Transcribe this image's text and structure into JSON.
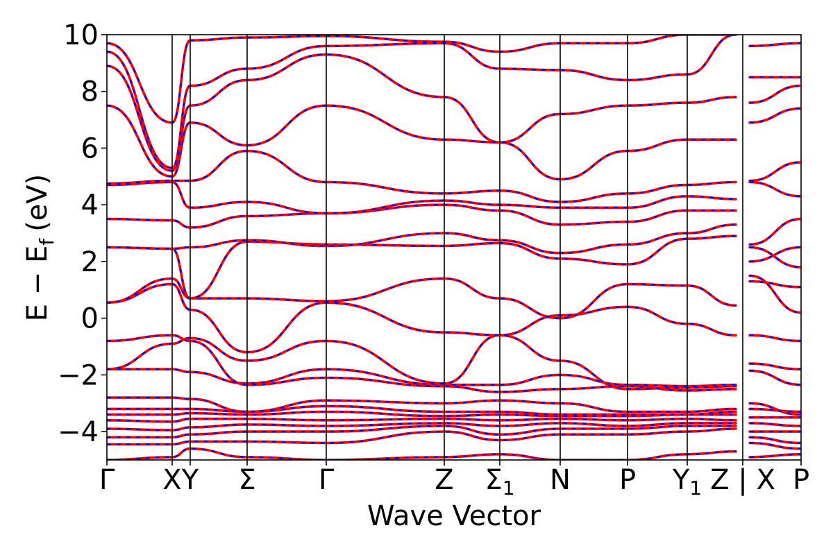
{
  "chart_data": {
    "type": "line",
    "title": "",
    "xlabel": "Wave Vector",
    "ylabel": "E − E",
    "ylabel_subscript": "f",
    "ylabel_unit": "(eV)",
    "ylim": [
      -5,
      10
    ],
    "y_ticks": [
      "10",
      "8",
      "6",
      "4",
      "2",
      "0",
      "−2",
      "−4"
    ],
    "y_tick_values": [
      10,
      8,
      6,
      4,
      2,
      0,
      -2,
      -4
    ],
    "k_path_labels": [
      {
        "label": "Γ",
        "x": 0.0
      },
      {
        "label": "X",
        "x": 0.094
      },
      {
        "label": "Y",
        "x": 0.12
      },
      {
        "label": "Σ",
        "x": 0.202
      },
      {
        "label": "Γ",
        "x": 0.316
      },
      {
        "label": "Z",
        "x": 0.486
      },
      {
        "label": "Σ",
        "sub": "1",
        "x": 0.566
      },
      {
        "label": "N",
        "x": 0.653
      },
      {
        "label": "P",
        "x": 0.75
      },
      {
        "label": "Y",
        "sub": "1",
        "x": 0.836
      },
      {
        "label": "Z | X",
        "x": 0.916
      },
      {
        "label": "P",
        "x": 1.0
      }
    ],
    "series_colors": {
      "primary": "#ff0000",
      "overlay": "#0000ff"
    },
    "line_styles": {
      "primary": "solid",
      "overlay": "dashed"
    },
    "bands": [
      {
        "y": [
          -5.0,
          -4.9,
          -4.6,
          -4.9,
          -5.0,
          -4.9,
          -4.8,
          -5.0,
          -5.0,
          -4.8,
          -4.7,
          -4.9,
          -4.8
        ]
      },
      {
        "y": [
          -4.45,
          -4.45,
          -4.35,
          -4.35,
          -4.4,
          -4.0,
          -4.3,
          -4.1,
          -4.1,
          -4.0,
          -3.9,
          -4.4,
          -4.6
        ]
      },
      {
        "y": [
          -4.2,
          -4.2,
          -4.1,
          -4.0,
          -4.0,
          -3.8,
          -4.1,
          -3.9,
          -3.9,
          -3.8,
          -3.8,
          -4.2,
          -4.4
        ]
      },
      {
        "y": [
          -3.9,
          -3.95,
          -3.85,
          -3.75,
          -3.8,
          -3.7,
          -3.8,
          -3.7,
          -3.8,
          -3.7,
          -3.7,
          -4.0,
          -4.0
        ]
      },
      {
        "y": [
          -3.6,
          -3.65,
          -3.55,
          -3.55,
          -3.6,
          -3.55,
          -3.6,
          -3.55,
          -3.6,
          -3.55,
          -3.6,
          -3.7,
          -3.8
        ]
      },
      {
        "y": [
          -3.4,
          -3.4,
          -3.35,
          -3.4,
          -3.3,
          -3.45,
          -3.4,
          -3.45,
          -3.45,
          -3.4,
          -3.4,
          -3.5,
          -3.5
        ]
      },
      {
        "y": [
          -3.2,
          -3.2,
          -3.2,
          -3.3,
          -3.1,
          -3.3,
          -3.3,
          -3.4,
          -3.4,
          -3.4,
          -3.3,
          -3.2,
          -3.3
        ]
      },
      {
        "y": [
          -2.8,
          -2.8,
          -2.85,
          -3.3,
          -2.9,
          -3.0,
          -2.9,
          -3.0,
          -3.3,
          -3.3,
          -3.2,
          -3.0,
          -3.4
        ]
      },
      {
        "y": [
          -1.8,
          -1.8,
          -1.9,
          -2.3,
          -1.8,
          -2.35,
          -2.35,
          -2.0,
          -2.35,
          -2.4,
          -2.35,
          -1.85,
          -2.35
        ]
      },
      {
        "y": [
          -0.8,
          -0.6,
          -0.8,
          -2.35,
          -2.1,
          -2.4,
          -2.6,
          -2.5,
          -2.4,
          -2.55,
          -2.5,
          -1.6,
          -1.8
        ]
      },
      {
        "y": [
          -1.8,
          -0.9,
          -0.7,
          -1.5,
          -0.8,
          -2.3,
          -0.6,
          -1.5,
          -2.5,
          -2.45,
          -2.4,
          -0.6,
          -0.8
        ]
      },
      {
        "y": [
          0.55,
          1.2,
          0.3,
          -1.2,
          0.55,
          -0.5,
          -0.6,
          0.1,
          0.4,
          -0.2,
          -0.6,
          1.5,
          0.2
        ]
      },
      {
        "y": [
          0.55,
          1.4,
          0.7,
          0.7,
          0.6,
          1.4,
          0.7,
          0.0,
          1.2,
          1.15,
          0.45,
          1.3,
          1.1
        ]
      },
      {
        "y": [
          2.5,
          2.45,
          0.7,
          2.7,
          2.6,
          2.55,
          2.65,
          2.1,
          1.9,
          2.8,
          2.9,
          2.5,
          1.8
        ]
      },
      {
        "y": [
          2.5,
          2.45,
          2.5,
          2.75,
          2.55,
          3.0,
          2.75,
          2.3,
          2.6,
          3.0,
          3.3,
          2.0,
          2.5
        ]
      },
      {
        "y": [
          3.5,
          3.45,
          3.2,
          3.6,
          3.7,
          4.0,
          3.8,
          3.3,
          3.4,
          3.8,
          3.8,
          2.6,
          3.5
        ]
      },
      {
        "y": [
          4.7,
          4.8,
          3.9,
          4.1,
          3.7,
          4.15,
          4.0,
          3.9,
          3.9,
          4.3,
          4.2,
          4.8,
          4.3
        ]
      },
      {
        "y": [
          4.75,
          4.85,
          4.85,
          5.9,
          4.8,
          4.4,
          4.5,
          4.1,
          4.4,
          4.7,
          4.8,
          4.85,
          5.5
        ]
      },
      {
        "y": [
          7.5,
          5.0,
          6.9,
          6.1,
          7.5,
          6.3,
          6.2,
          4.9,
          5.9,
          6.3,
          6.3,
          6.9,
          7.4
        ]
      },
      {
        "y": [
          8.9,
          5.2,
          7.5,
          8.4,
          9.3,
          7.8,
          6.2,
          7.2,
          7.5,
          7.6,
          7.8,
          7.6,
          8.2
        ]
      },
      {
        "y": [
          9.4,
          5.3,
          8.2,
          8.8,
          9.6,
          9.7,
          8.8,
          8.75,
          8.4,
          8.6,
          10.0,
          8.5,
          8.5
        ]
      },
      {
        "y": [
          9.7,
          6.9,
          9.8,
          9.9,
          9.95,
          9.75,
          9.4,
          9.7,
          9.7,
          10.0,
          10.0,
          9.6,
          9.7
        ]
      }
    ]
  }
}
